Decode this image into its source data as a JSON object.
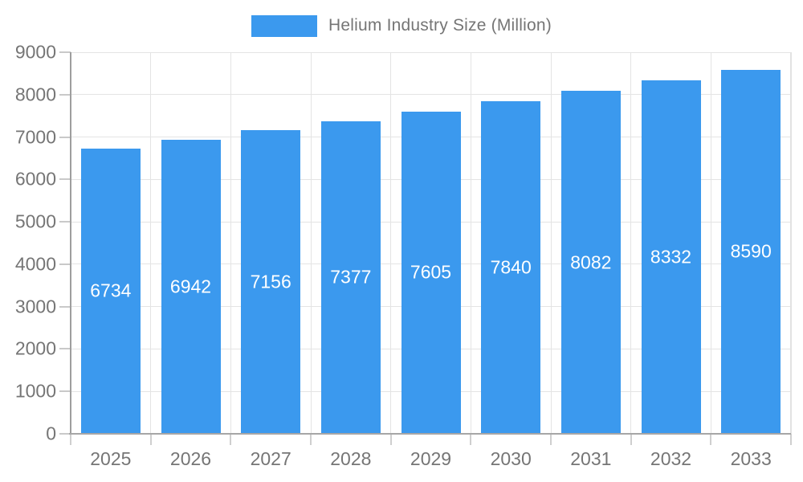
{
  "legend": {
    "label": "Helium Industry Size (Million)"
  },
  "chart_data": {
    "type": "bar",
    "title": "Helium Industry Size (Million)",
    "categories": [
      "2025",
      "2026",
      "2027",
      "2028",
      "2029",
      "2030",
      "2031",
      "2032",
      "2033"
    ],
    "values": [
      6734,
      6942,
      7156,
      7377,
      7605,
      7840,
      8082,
      8332,
      8590
    ],
    "xlabel": "",
    "ylabel": "",
    "ylim": [
      0,
      9000
    ],
    "ytick_step": 1000,
    "yticks": [
      0,
      1000,
      2000,
      3000,
      4000,
      5000,
      6000,
      7000,
      8000,
      9000
    ],
    "grid": true,
    "legend_position": "top",
    "bar_color": "#3B99EE",
    "bar_label_color": "#ffffff",
    "axis_text_color": "#757575",
    "gridline_color": "#e4e4e4",
    "axis_line_color": "#a6a6a6"
  }
}
